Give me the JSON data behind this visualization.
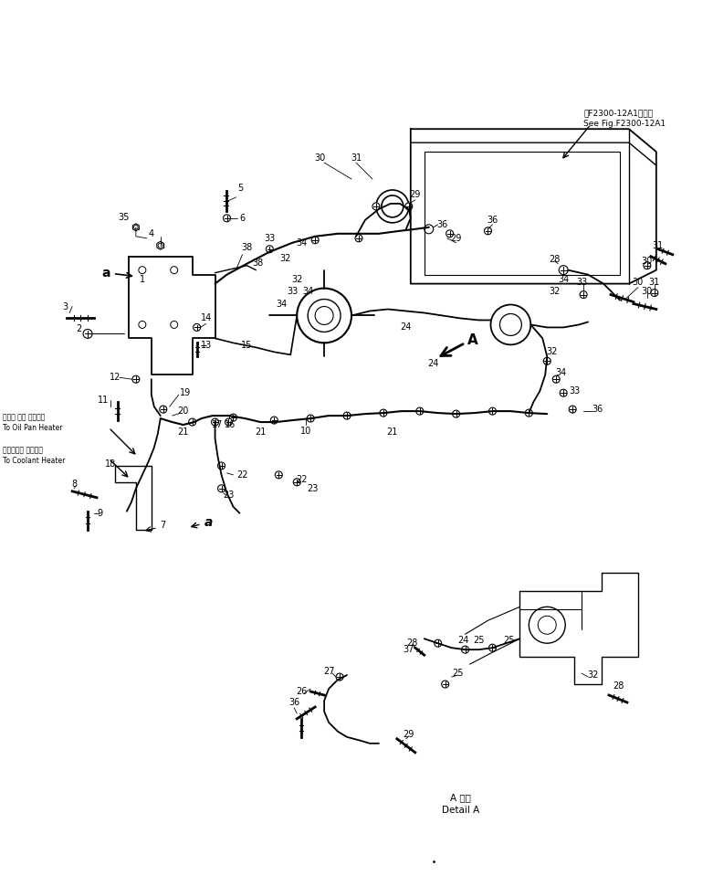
{
  "background_color": "#ffffff",
  "fig_width": 7.81,
  "fig_height": 9.59,
  "dpi": 100,
  "reference_text_1": "第F2300-12A1図参照",
  "reference_text_2": "See Fig.F2300-12A1",
  "detail_text_1": "A 詳細",
  "detail_text_2": "Detail A",
  "oil_pan_jp": "オイル パン ヒータへ",
  "oil_pan_en": "To Oil Pan Heater",
  "coolant_jp": "クーラント ヒータへ",
  "coolant_en": "To Coolant Heater",
  "line_color": "#000000",
  "text_color": "#000000"
}
